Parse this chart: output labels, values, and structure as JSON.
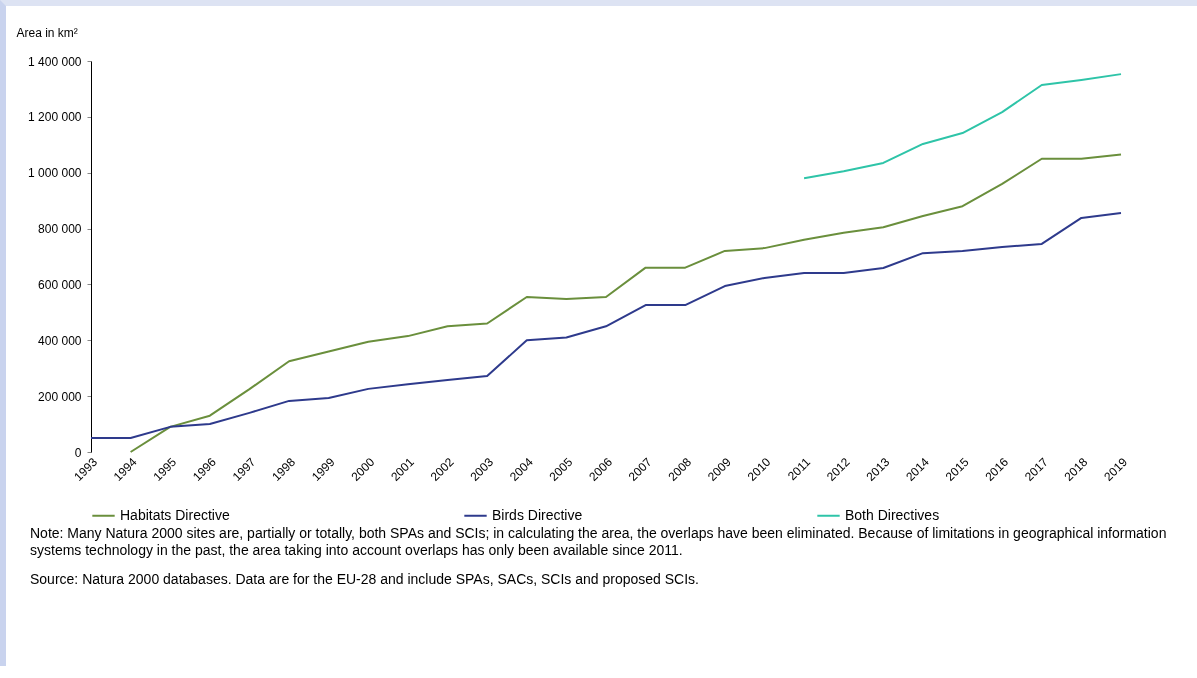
{
  "chart_data": {
    "type": "line",
    "ylabel": "Area in km²",
    "categories": [
      "1993",
      "1994",
      "1995",
      "1996",
      "1997",
      "1998",
      "1999",
      "2000",
      "2001",
      "2002",
      "2003",
      "2004",
      "2005",
      "2006",
      "2007",
      "2008",
      "2009",
      "2010",
      "2011",
      "2012",
      "2013",
      "2014",
      "2015",
      "2016",
      "2017",
      "2018",
      "2019"
    ],
    "series": [
      {
        "name": "Habitats Directive",
        "color": "#6a8f3c",
        "values": [
          null,
          0,
          90000,
          130000,
          225000,
          325000,
          360000,
          395000,
          415000,
          450000,
          460000,
          555000,
          548000,
          555000,
          660000,
          660000,
          720000,
          730000,
          760000,
          785000,
          805000,
          845000,
          880000,
          960000,
          1050000,
          1050000,
          1065000
        ]
      },
      {
        "name": "Birds Directive",
        "color": "#2e3a8c",
        "values": [
          50000,
          50000,
          90000,
          100000,
          140000,
          183000,
          193000,
          226000,
          243000,
          258000,
          272000,
          400000,
          410000,
          450000,
          526000,
          526000,
          594000,
          623000,
          641000,
          641000,
          659000,
          712000,
          720000,
          734000,
          745000,
          838000,
          856000
        ]
      },
      {
        "name": "Both Directives",
        "color": "#2ec4a8",
        "values": [
          null,
          null,
          null,
          null,
          null,
          null,
          null,
          null,
          null,
          null,
          null,
          null,
          null,
          null,
          null,
          null,
          null,
          null,
          980000,
          1005000,
          1035000,
          1103000,
          1142000,
          1217000,
          1314000,
          1332000,
          1353000
        ]
      }
    ],
    "ylim": [
      0,
      1400000
    ],
    "yticks": [
      {
        "value": 0,
        "label": "0"
      },
      {
        "value": 200000,
        "label": "200 000"
      },
      {
        "value": 400000,
        "label": "400 000"
      },
      {
        "value": 600000,
        "label": "600 000"
      },
      {
        "value": 800000,
        "label": "800 000"
      },
      {
        "value": 1000000,
        "label": "1 000 000"
      },
      {
        "value": 1200000,
        "label": "1 200 000"
      },
      {
        "value": 1400000,
        "label": "1 400 000"
      }
    ],
    "grid": false,
    "legend": "bottom",
    "marker": "none",
    "line_style": "solid",
    "annotations": [
      "Note: Many Natura 2000 sites are, partially or totally, both SPAs and SCIs; in calculating the area, the overlaps have been eliminated. Because of limitations in geographical information systems technology in the past, the area taking into account overlaps has only been available since 2011.",
      "Source: Natura 2000 databases. Data are for the EU-28 and include SPAs, SACs, SCIs and proposed SCIs."
    ]
  }
}
